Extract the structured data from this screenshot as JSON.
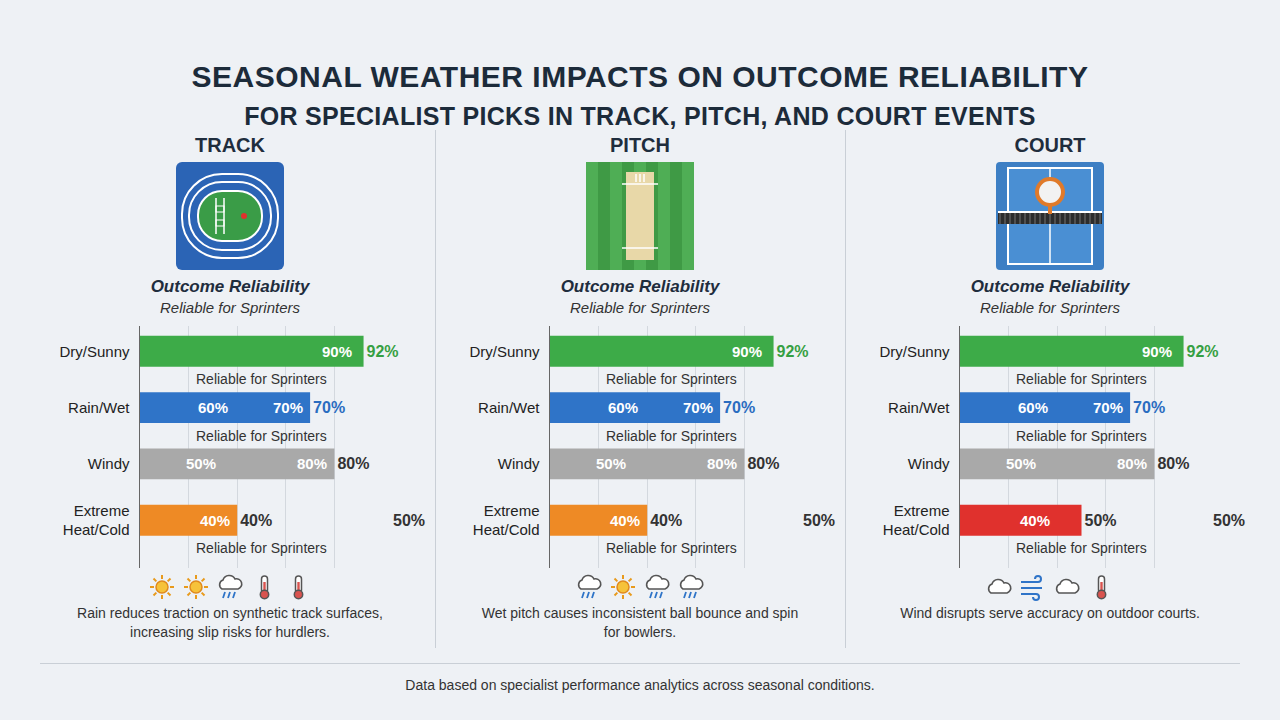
{
  "title": "SEASONAL WEATHER IMPACTS ON OUTCOME RELIABILITY",
  "subtitle": "FOR SPECIALIST PICKS IN TRACK, PITCH, AND COURT EVENTS",
  "footer": "Data based on specialist performance analytics across seasonal conditions.",
  "chart_data": [
    {
      "type": "bar",
      "title": "TRACK",
      "subtitle": "Outcome Reliability",
      "subtitle_note": "Reliable for Sprinters",
      "caption": "Rain reduces traction on synthetic track surfaces, increasing slip risks for hurdlers.",
      "orientation": "horizontal",
      "categories": [
        "Dry/Sunny",
        "Rain/Wet",
        "Windy",
        "Extreme Heat/Cold"
      ],
      "values": [
        92,
        70,
        80,
        40
      ],
      "value_labels": [
        "92%",
        "70%",
        "80%",
        "40%"
      ],
      "colors": [
        "#3dab48",
        "#2f74c8",
        "#a9a9a9",
        "#ee8a25"
      ],
      "inner_labels": [
        [
          {
            "value": 90,
            "label": "90%"
          }
        ],
        [
          {
            "value": 60,
            "label": "60%"
          },
          {
            "value": 70,
            "label": "70%"
          }
        ],
        [
          {
            "value": 50,
            "label": "50%"
          },
          {
            "value": 80,
            "label": "80%"
          }
        ],
        [
          {
            "value": 40,
            "label": "40%"
          }
        ]
      ],
      "notes": [
        {
          "category": "Dry/Sunny",
          "text": "Reliable for Sprinters"
        },
        {
          "category": "Rain/Wet",
          "text": "Reliable for Sprinters"
        },
        {
          "category": "Extreme Heat/Cold",
          "text": "Reliable for Sprinters"
        }
      ],
      "end_notes": [
        {
          "category": "Extreme Heat/Cold",
          "text": "50%"
        }
      ],
      "xlim": [
        0,
        100
      ],
      "xticks": [
        0,
        20,
        40,
        60,
        80,
        100
      ],
      "grid": true,
      "tick_labels": "y",
      "data_labels": true
    },
    {
      "type": "bar",
      "title": "PITCH",
      "subtitle": "Outcome Reliability",
      "subtitle_note": "Reliable for Sprinters",
      "caption": "Wet pitch causes inconsistent ball bounce and spin for bowlers.",
      "orientation": "horizontal",
      "categories": [
        "Dry/Sunny",
        "Rain/Wet",
        "Windy",
        "Extreme Heat/Cold"
      ],
      "values": [
        92,
        70,
        80,
        40
      ],
      "value_labels": [
        "92%",
        "70%",
        "80%",
        "40%"
      ],
      "colors": [
        "#3dab48",
        "#2f74c8",
        "#a9a9a9",
        "#ee8a25"
      ],
      "inner_labels": [
        [
          {
            "value": 90,
            "label": "90%"
          }
        ],
        [
          {
            "value": 60,
            "label": "60%"
          },
          {
            "value": 70,
            "label": "70%"
          }
        ],
        [
          {
            "value": 50,
            "label": "50%"
          },
          {
            "value": 80,
            "label": "80%"
          }
        ],
        [
          {
            "value": 40,
            "label": "40%"
          }
        ]
      ],
      "notes": [
        {
          "category": "Dry/Sunny",
          "text": "Reliable for Sprinters"
        },
        {
          "category": "Rain/Wet",
          "text": "Reliable for Sprinters"
        },
        {
          "category": "Extreme Heat/Cold",
          "text": "Reliable for Sprinters"
        }
      ],
      "end_notes": [
        {
          "category": "Extreme Heat/Cold",
          "text": "50%"
        }
      ],
      "xlim": [
        0,
        100
      ],
      "xticks": [
        0,
        20,
        40,
        60,
        80,
        100
      ],
      "grid": true,
      "tick_labels": "y",
      "data_labels": true
    },
    {
      "type": "bar",
      "title": "COURT",
      "subtitle": "Outcome Reliability",
      "subtitle_note": "Reliable for Sprinters",
      "caption": "Wind disrupts serve accuracy on outdoor courts.",
      "orientation": "horizontal",
      "categories": [
        "Dry/Sunny",
        "Rain/Wet",
        "Windy",
        "Extreme Heat/Cold"
      ],
      "values": [
        92,
        70,
        80,
        50
      ],
      "value_labels": [
        "92%",
        "70%",
        "80%",
        "50%"
      ],
      "colors": [
        "#3dab48",
        "#2f74c8",
        "#a9a9a9",
        "#e0312d"
      ],
      "inner_labels": [
        [
          {
            "value": 90,
            "label": "90%"
          }
        ],
        [
          {
            "value": 60,
            "label": "60%"
          },
          {
            "value": 70,
            "label": "70%"
          }
        ],
        [
          {
            "value": 50,
            "label": "50%"
          },
          {
            "value": 80,
            "label": "80%"
          }
        ],
        [
          {
            "value": 40,
            "label": "40%"
          }
        ]
      ],
      "notes": [
        {
          "category": "Dry/Sunny",
          "text": "Reliable for Sprinters"
        },
        {
          "category": "Rain/Wet",
          "text": "Reliable for Sprinters"
        },
        {
          "category": "Extreme Heat/Cold",
          "text": "Reliable for Sprinters"
        }
      ],
      "end_notes": [
        {
          "category": "Extreme Heat/Cold",
          "text": "50%"
        }
      ],
      "xlim": [
        0,
        100
      ],
      "xticks": [
        0,
        20,
        40,
        60,
        80,
        100
      ],
      "grid": true,
      "tick_labels": "y",
      "data_labels": true
    }
  ]
}
